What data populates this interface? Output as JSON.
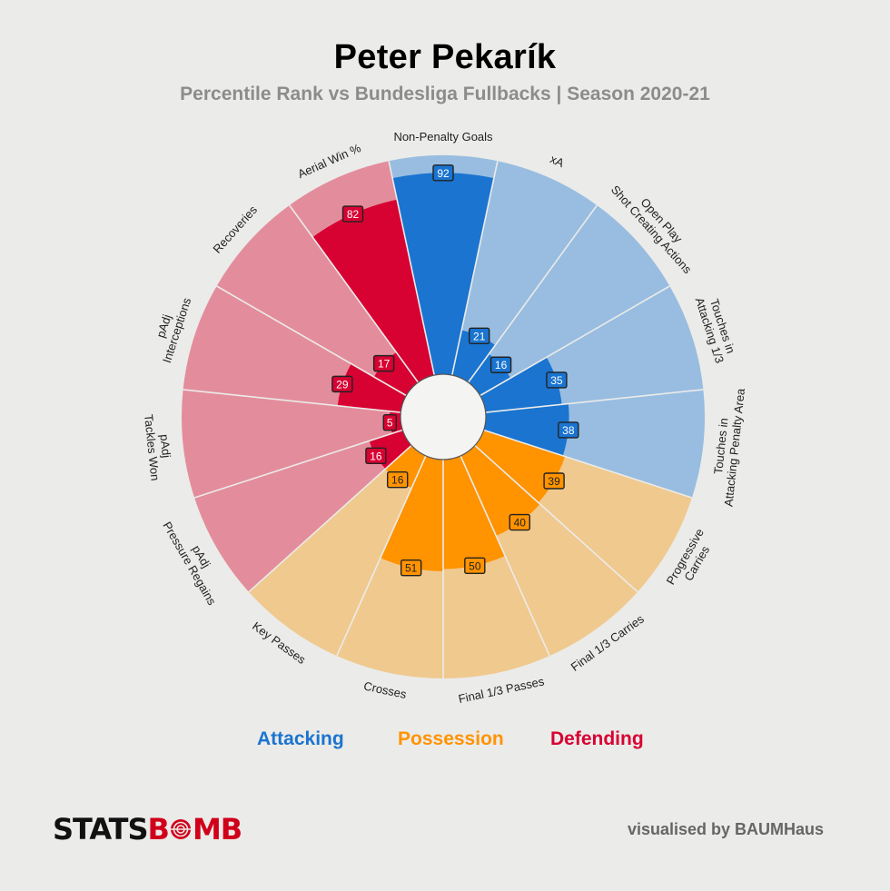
{
  "header": {
    "title": "Peter Pekarík",
    "subtitle": "Percentile Rank vs Bundesliga Fullbacks | Season 2020-21"
  },
  "colors": {
    "background": "#ebebe9",
    "attacking": "#1a74d0",
    "attacking_light": "#98bde0",
    "possession": "#ff9300",
    "possession_light": "#f0c98f",
    "defending": "#d70232",
    "defending_light": "#e38d9c"
  },
  "chart_data": {
    "type": "pizza",
    "scale": [
      0,
      100
    ],
    "label_prefix": "",
    "metrics": [
      {
        "label": "Non-Penalty Goals",
        "value": 92,
        "group": "attacking"
      },
      {
        "label": "xA",
        "value": 21,
        "group": "attacking"
      },
      {
        "label": "Open Play\nShot Creating Actions",
        "value": 16,
        "group": "attacking"
      },
      {
        "label": "Touches in\nAttacking 1/3",
        "value": 35,
        "group": "attacking"
      },
      {
        "label": "Touches in\nAttacking Penalty Area",
        "value": 38,
        "group": "attacking"
      },
      {
        "label": "Progressive\nCarries",
        "value": 39,
        "group": "possession"
      },
      {
        "label": "Final 1/3 Carries",
        "value": 40,
        "group": "possession"
      },
      {
        "label": "Final 1/3 Passes",
        "value": 50,
        "group": "possession"
      },
      {
        "label": "Crosses",
        "value": 51,
        "group": "possession"
      },
      {
        "label": "Key Passes",
        "value": 16,
        "group": "possession"
      },
      {
        "label": "pAdj\nPressure Regains",
        "value": 16,
        "group": "defending"
      },
      {
        "label": "pAdj\nTackles Won",
        "value": 5,
        "group": "defending"
      },
      {
        "label": "pAdj\nInterceptions",
        "value": 29,
        "group": "defending"
      },
      {
        "label": "Recoveries",
        "value": 17,
        "group": "defending"
      },
      {
        "label": "Aerial Win %",
        "value": 82,
        "group": "defending"
      }
    ]
  },
  "legend": {
    "attacking": "Attacking",
    "possession": "Possession",
    "defending": "Defending"
  },
  "footer": {
    "brand_left": "STATS",
    "brand_b": "B",
    "brand_right": "MB",
    "credit": "visualised by BAUMHaus"
  }
}
